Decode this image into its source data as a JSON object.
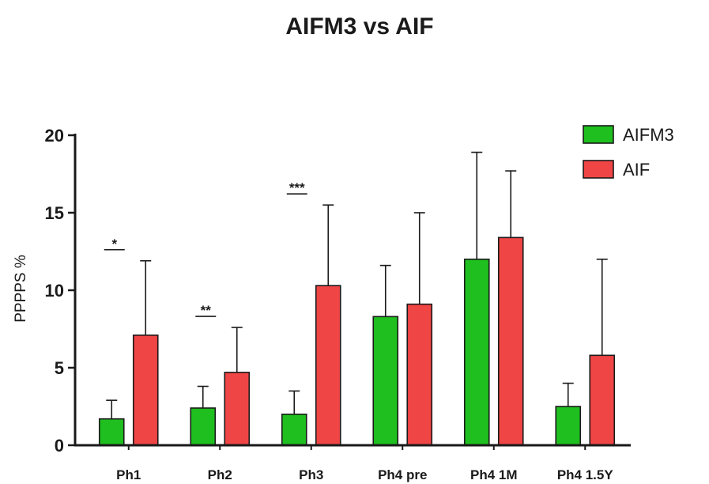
{
  "chart_data": {
    "type": "bar",
    "title": "AIFM3 vs AIF",
    "ylabel": "PPPPS %",
    "xlabel": "",
    "ylim": [
      0,
      20
    ],
    "yticks": [
      0,
      5,
      10,
      15,
      20
    ],
    "categories": [
      "Ph1",
      "Ph2",
      "Ph3",
      "Ph4 pre",
      "Ph4 1M",
      "Ph4 1.5Y"
    ],
    "series": [
      {
        "name": "AIFM3",
        "color": "#1fbf1f",
        "values": [
          1.7,
          2.4,
          2.0,
          8.3,
          12.0,
          2.5
        ],
        "error_upper": [
          2.9,
          3.8,
          3.5,
          11.6,
          18.9,
          4.0
        ]
      },
      {
        "name": "AIF",
        "color": "#f04545",
        "values": [
          7.1,
          4.7,
          10.3,
          9.1,
          13.4,
          5.8
        ],
        "error_upper": [
          11.9,
          7.6,
          15.5,
          15.0,
          17.7,
          12.0
        ]
      }
    ],
    "significance": [
      {
        "category": "Ph1",
        "label": "*"
      },
      {
        "category": "Ph2",
        "label": "**"
      },
      {
        "category": "Ph3",
        "label": "***"
      }
    ],
    "legend": {
      "position": "top-right"
    },
    "grid": false
  }
}
